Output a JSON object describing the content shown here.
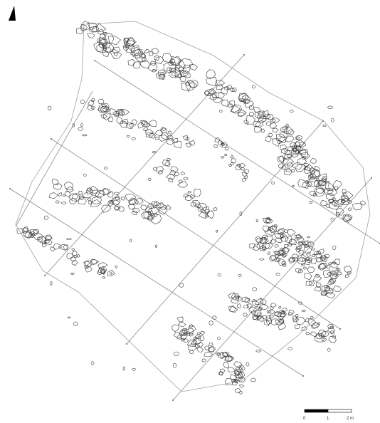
{
  "colors": {
    "background": "#ffffff",
    "stone_outline": "#3a3a3a",
    "grid_line": "#8a8a8a",
    "boundary_line": "#a0a0a0",
    "north_arrow": "#000000"
  },
  "north_arrow": {
    "icon": "north-arrow-icon"
  },
  "scale_bar": {
    "labels": [
      "0",
      "1",
      "2 m"
    ],
    "segment_fill": [
      "#000000",
      "#ffffff"
    ]
  }
}
